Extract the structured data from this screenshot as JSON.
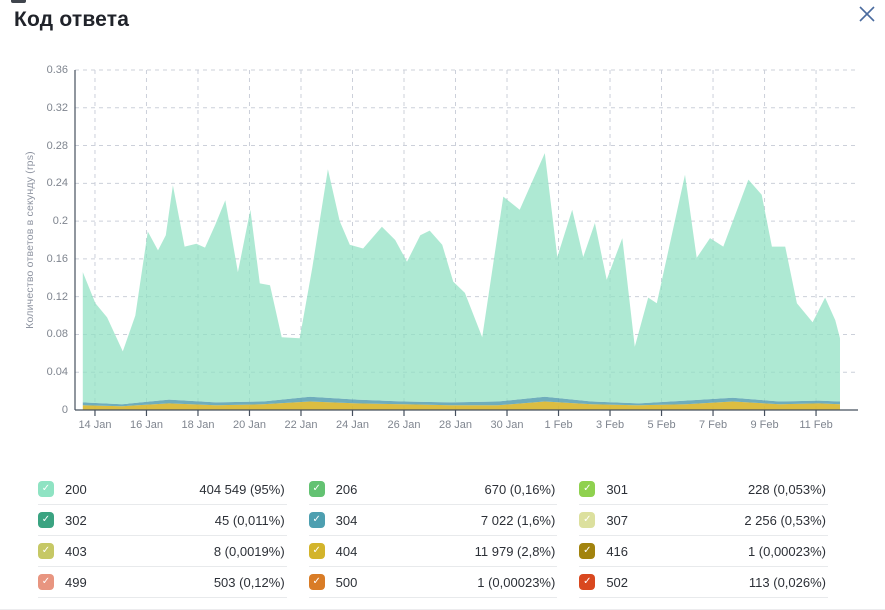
{
  "header": {
    "title": "Код ответа",
    "close_icon": "x"
  },
  "colors": {
    "axis": "#46505e",
    "grid": "#ccd0da",
    "tick_text": "#7f858f",
    "title_text": "#20232a",
    "close_icon": "#4a6b9f"
  },
  "chart_data": {
    "type": "area",
    "stacked": true,
    "title": "Код ответа",
    "xlabel": "",
    "ylabel": "Количество ответов в секунду (rps)",
    "ylim": [
      0,
      0.36
    ],
    "grid": true,
    "legend_position": "bottom-table",
    "y_ticks": [
      "0.36",
      "0.32",
      "0.28",
      "0.24",
      "0.2",
      "0.16",
      "0.12",
      "0.08",
      "0.04",
      "0"
    ],
    "y_tick_values": [
      0.36,
      0.32,
      0.28,
      0.24,
      0.2,
      0.16,
      0.12,
      0.08,
      0.04,
      0
    ],
    "x_ticks": [
      "14 Jan",
      "16 Jan",
      "18 Jan",
      "20 Jan",
      "22 Jan",
      "24 Jan",
      "26 Jan",
      "28 Jan",
      "30 Jan",
      "1 Feb",
      "3 Feb",
      "5 Feb",
      "7 Feb",
      "9 Feb",
      "11 Feb"
    ],
    "note": "stacked rps area chart 13 Jan – 12 Feb; series 200 dominates; 404 and 304 form thin bands near zero; remaining codes are negligible. x given as fraction of plot width, y in rps (upper/lower = stacked band edges).",
    "series": [
      {
        "name": "200",
        "color": "#8fe0c2",
        "opacity": 0.72,
        "upper": [
          [
            0.01,
            0.146
          ],
          [
            0.026,
            0.113
          ],
          [
            0.041,
            0.098
          ],
          [
            0.061,
            0.062
          ],
          [
            0.077,
            0.1
          ],
          [
            0.093,
            0.189
          ],
          [
            0.106,
            0.169
          ],
          [
            0.116,
            0.185
          ],
          [
            0.125,
            0.238
          ],
          [
            0.14,
            0.173
          ],
          [
            0.155,
            0.176
          ],
          [
            0.166,
            0.172
          ],
          [
            0.179,
            0.196
          ],
          [
            0.192,
            0.222
          ],
          [
            0.208,
            0.146
          ],
          [
            0.224,
            0.212
          ],
          [
            0.236,
            0.134
          ],
          [
            0.249,
            0.132
          ],
          [
            0.264,
            0.077
          ],
          [
            0.287,
            0.076
          ],
          [
            0.303,
            0.15
          ],
          [
            0.323,
            0.255
          ],
          [
            0.338,
            0.2
          ],
          [
            0.351,
            0.175
          ],
          [
            0.368,
            0.171
          ],
          [
            0.392,
            0.194
          ],
          [
            0.409,
            0.18
          ],
          [
            0.424,
            0.157
          ],
          [
            0.441,
            0.185
          ],
          [
            0.453,
            0.19
          ],
          [
            0.469,
            0.175
          ],
          [
            0.483,
            0.136
          ],
          [
            0.498,
            0.124
          ],
          [
            0.52,
            0.077
          ],
          [
            0.547,
            0.226
          ],
          [
            0.568,
            0.212
          ],
          [
            0.6,
            0.272
          ],
          [
            0.616,
            0.162
          ],
          [
            0.635,
            0.212
          ],
          [
            0.649,
            0.162
          ],
          [
            0.664,
            0.198
          ],
          [
            0.679,
            0.138
          ],
          [
            0.699,
            0.182
          ],
          [
            0.715,
            0.067
          ],
          [
            0.732,
            0.119
          ],
          [
            0.743,
            0.113
          ],
          [
            0.779,
            0.249
          ],
          [
            0.794,
            0.161
          ],
          [
            0.811,
            0.182
          ],
          [
            0.828,
            0.173
          ],
          [
            0.86,
            0.244
          ],
          [
            0.877,
            0.228
          ],
          [
            0.89,
            0.173
          ],
          [
            0.907,
            0.173
          ],
          [
            0.922,
            0.113
          ],
          [
            0.942,
            0.093
          ],
          [
            0.958,
            0.119
          ],
          [
            0.971,
            0.095
          ],
          [
            0.977,
            0.076
          ]
        ],
        "lower": [
          [
            0.01,
            0.008
          ],
          [
            0.06,
            0.006
          ],
          [
            0.12,
            0.011
          ],
          [
            0.18,
            0.008
          ],
          [
            0.24,
            0.009
          ],
          [
            0.3,
            0.014
          ],
          [
            0.36,
            0.011
          ],
          [
            0.42,
            0.009
          ],
          [
            0.48,
            0.008
          ],
          [
            0.54,
            0.009
          ],
          [
            0.6,
            0.014
          ],
          [
            0.66,
            0.009
          ],
          [
            0.72,
            0.007
          ],
          [
            0.78,
            0.01
          ],
          [
            0.84,
            0.013
          ],
          [
            0.9,
            0.009
          ],
          [
            0.95,
            0.01
          ],
          [
            0.977,
            0.009
          ]
        ]
      },
      {
        "name": "304",
        "color": "#569fb0",
        "opacity": 0.85,
        "upper": [
          [
            0.01,
            0.008
          ],
          [
            0.06,
            0.006
          ],
          [
            0.12,
            0.011
          ],
          [
            0.18,
            0.008
          ],
          [
            0.24,
            0.009
          ],
          [
            0.3,
            0.014
          ],
          [
            0.36,
            0.011
          ],
          [
            0.42,
            0.009
          ],
          [
            0.48,
            0.008
          ],
          [
            0.54,
            0.009
          ],
          [
            0.6,
            0.014
          ],
          [
            0.66,
            0.009
          ],
          [
            0.72,
            0.007
          ],
          [
            0.78,
            0.01
          ],
          [
            0.84,
            0.013
          ],
          [
            0.9,
            0.009
          ],
          [
            0.95,
            0.01
          ],
          [
            0.977,
            0.009
          ]
        ],
        "lower": [
          [
            0.01,
            0.005
          ],
          [
            0.06,
            0.004
          ],
          [
            0.12,
            0.007
          ],
          [
            0.18,
            0.005
          ],
          [
            0.24,
            0.006
          ],
          [
            0.3,
            0.009
          ],
          [
            0.36,
            0.007
          ],
          [
            0.42,
            0.006
          ],
          [
            0.48,
            0.005
          ],
          [
            0.54,
            0.005
          ],
          [
            0.6,
            0.009
          ],
          [
            0.66,
            0.006
          ],
          [
            0.72,
            0.005
          ],
          [
            0.78,
            0.006
          ],
          [
            0.84,
            0.009
          ],
          [
            0.9,
            0.006
          ],
          [
            0.95,
            0.007
          ],
          [
            0.977,
            0.006
          ]
        ]
      },
      {
        "name": "404",
        "color": "#d8b62c",
        "opacity": 0.9,
        "upper": [
          [
            0.01,
            0.005
          ],
          [
            0.06,
            0.004
          ],
          [
            0.12,
            0.007
          ],
          [
            0.18,
            0.005
          ],
          [
            0.24,
            0.006
          ],
          [
            0.3,
            0.009
          ],
          [
            0.36,
            0.007
          ],
          [
            0.42,
            0.006
          ],
          [
            0.48,
            0.005
          ],
          [
            0.54,
            0.005
          ],
          [
            0.6,
            0.009
          ],
          [
            0.66,
            0.006
          ],
          [
            0.72,
            0.005
          ],
          [
            0.78,
            0.006
          ],
          [
            0.84,
            0.009
          ],
          [
            0.9,
            0.006
          ],
          [
            0.95,
            0.007
          ],
          [
            0.977,
            0.006
          ]
        ],
        "lower": [
          [
            0.01,
            0
          ],
          [
            0.977,
            0
          ]
        ]
      }
    ]
  },
  "legend": {
    "columns": 3,
    "items": [
      {
        "code": "200",
        "color": "#8fe3c3",
        "value": "404 549 (95%)",
        "checked": true
      },
      {
        "code": "206",
        "color": "#63c272",
        "value": "670 (0,16%)",
        "checked": true
      },
      {
        "code": "301",
        "color": "#8fd14f",
        "value": "228 (0,053%)",
        "checked": true
      },
      {
        "code": "302",
        "color": "#3aa381",
        "value": "45 (0,011%)",
        "checked": true
      },
      {
        "code": "304",
        "color": "#4d9fb0",
        "value": "7 022 (1,6%)",
        "checked": true
      },
      {
        "code": "307",
        "color": "#dce09e",
        "value": "2 256 (0,53%)",
        "checked": true
      },
      {
        "code": "403",
        "color": "#c6c865",
        "value": "8 (0,0019%)",
        "checked": true
      },
      {
        "code": "404",
        "color": "#d3b42b",
        "value": "11 979 (2,8%)",
        "checked": true
      },
      {
        "code": "416",
        "color": "#a2830e",
        "value": "1 (0,00023%)",
        "checked": true
      },
      {
        "code": "499",
        "color": "#e89580",
        "value": "503 (0,12%)",
        "checked": true
      },
      {
        "code": "500",
        "color": "#d97c26",
        "value": "1 (0,00023%)",
        "checked": true
      },
      {
        "code": "502",
        "color": "#d9481f",
        "value": "113 (0,026%)",
        "checked": true
      }
    ]
  }
}
